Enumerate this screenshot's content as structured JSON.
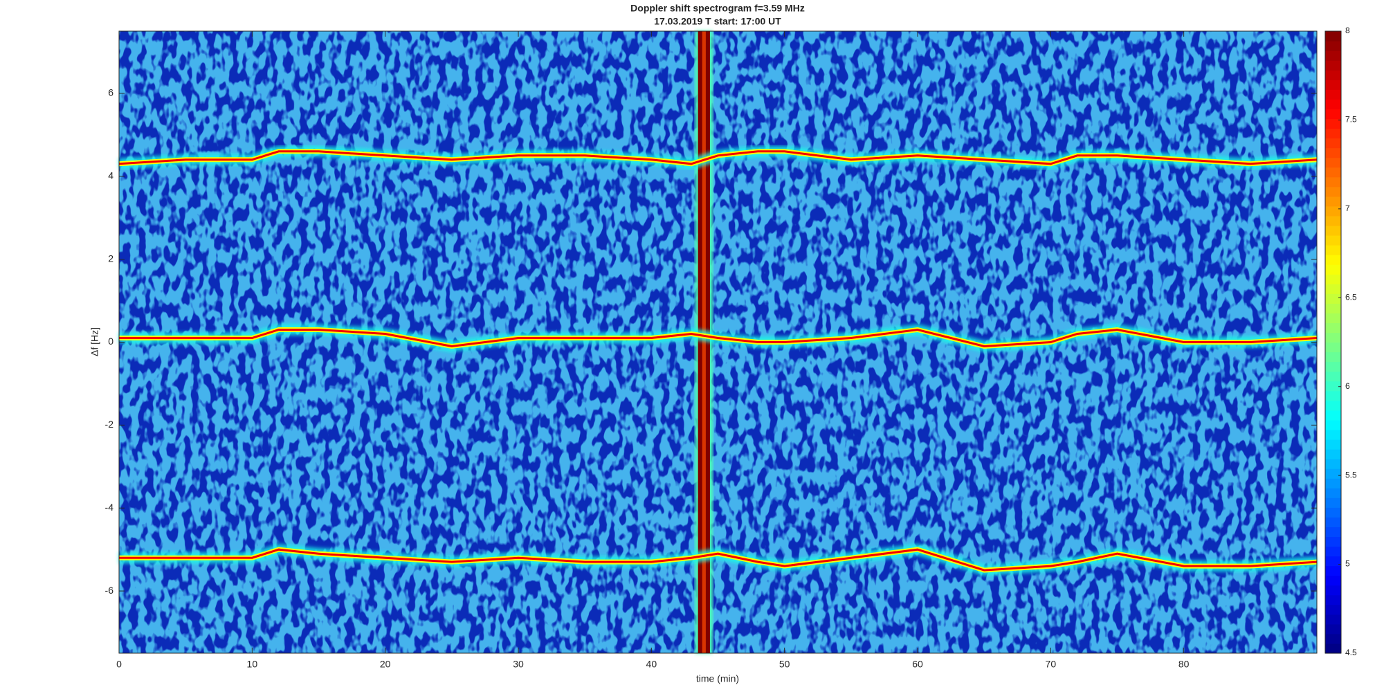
{
  "chart_data": {
    "type": "spectrogram",
    "title": "Doppler shift spectrogram f=3.59 MHz",
    "subtitle": "17.03.2019   T start: 17:00 UT",
    "xlabel": "time (min)",
    "ylabel": "Δf [Hz]",
    "xlim": [
      0,
      90
    ],
    "xticks": [
      0,
      10,
      20,
      30,
      40,
      50,
      60,
      70,
      80
    ],
    "ylim": [
      -7.5,
      7.5
    ],
    "yticks": [
      -6,
      -4,
      -2,
      0,
      2,
      4,
      6
    ],
    "clim": [
      4.5,
      8
    ],
    "cticks": [
      4.5,
      5,
      5.5,
      6,
      6.5,
      7,
      7.5,
      8
    ],
    "colormap": "jet",
    "x": [
      0,
      5,
      10,
      12,
      15,
      20,
      25,
      30,
      35,
      40,
      43,
      45,
      48,
      50,
      55,
      60,
      65,
      70,
      72,
      75,
      80,
      85,
      90
    ],
    "trace_level": 7.6,
    "traces": [
      {
        "values": [
          4.3,
          4.4,
          4.4,
          4.6,
          4.6,
          4.5,
          4.4,
          4.5,
          4.5,
          4.4,
          4.3,
          4.5,
          4.6,
          4.6,
          4.4,
          4.5,
          4.4,
          4.3,
          4.5,
          4.5,
          4.4,
          4.3,
          4.4
        ]
      },
      {
        "values": [
          0.1,
          0.1,
          0.1,
          0.3,
          0.3,
          0.2,
          -0.1,
          0.1,
          0.1,
          0.1,
          0.2,
          0.1,
          0,
          0,
          0.1,
          0.3,
          -0.1,
          0,
          0.2,
          0.3,
          0,
          0,
          0.1
        ]
      },
      {
        "values": [
          -5.2,
          -5.2,
          -5.2,
          -5,
          -5.1,
          -5.2,
          -5.3,
          -5.2,
          -5.3,
          -5.3,
          -5.2,
          -5.1,
          -5.3,
          -5.4,
          -5.2,
          -5,
          -5.5,
          -5.4,
          -5.3,
          -5.1,
          -5.4,
          -5.4,
          -5.3
        ]
      }
    ],
    "interference": {
      "x": [
        43.5,
        44.4
      ],
      "level": 8
    }
  }
}
